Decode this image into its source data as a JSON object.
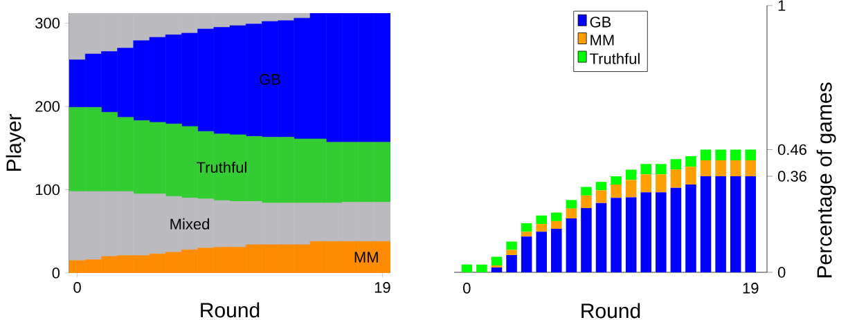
{
  "chart_data": [
    {
      "type": "bar",
      "stacked": true,
      "xlabel": "Round",
      "ylabel": "Player",
      "categories": [
        "0",
        null,
        null,
        null,
        null,
        null,
        null,
        null,
        null,
        null,
        null,
        null,
        null,
        null,
        null,
        null,
        null,
        null,
        null,
        "19"
      ],
      "series": [
        {
          "name": "MM",
          "color": "#ff8c00",
          "values": [
            15,
            16,
            20,
            21,
            21,
            23,
            25,
            28,
            30,
            31,
            31,
            34,
            34,
            34,
            34,
            38,
            38,
            38,
            38,
            38
          ]
        },
        {
          "name": "Mixed",
          "color": "#bbbbbf",
          "values": [
            83,
            82,
            78,
            77,
            74,
            72,
            67,
            62,
            59,
            56,
            55,
            52,
            50,
            50,
            50,
            46,
            46,
            47,
            47,
            47
          ]
        },
        {
          "name": "Truthful",
          "color": "#33cc33",
          "values": [
            101,
            101,
            95,
            89,
            88,
            86,
            87,
            86,
            81,
            80,
            80,
            78,
            79,
            79,
            77,
            77,
            73,
            72,
            72,
            72
          ]
        },
        {
          "name": "GB",
          "color": "#0000ff",
          "values": [
            57,
            64,
            73,
            83,
            96,
            102,
            107,
            112,
            123,
            128,
            131,
            135,
            139,
            140,
            145,
            151,
            155,
            155,
            155,
            155
          ]
        },
        {
          "color": "#bbbbbf",
          "values": [
            56,
            49,
            46,
            42,
            33,
            29,
            26,
            24,
            19,
            17,
            15,
            13,
            10,
            9,
            6,
            0,
            0,
            0,
            0,
            0
          ]
        }
      ],
      "ylim": [
        0,
        312
      ],
      "yticks": [
        0,
        100,
        200,
        300
      ]
    },
    {
      "type": "bar",
      "stacked": true,
      "xlabel": "Round",
      "ylabel": "Percentage of games",
      "categories": [
        "0",
        null,
        null,
        null,
        null,
        null,
        null,
        null,
        null,
        null,
        null,
        null,
        null,
        null,
        null,
        null,
        null,
        null,
        null,
        "19"
      ],
      "series": [
        {
          "name": "GB",
          "color": "#0000ff",
          "values": [
            0,
            0,
            0.018,
            0.065,
            0.134,
            0.152,
            0.163,
            0.202,
            0.241,
            0.26,
            0.279,
            0.281,
            0.3,
            0.3,
            0.317,
            0.329,
            0.36,
            0.36,
            0.36,
            0.36
          ]
        },
        {
          "name": "MM",
          "color": "#ffa000",
          "values": [
            0,
            0,
            0.008,
            0.019,
            0.018,
            0.029,
            0.029,
            0.037,
            0.047,
            0.047,
            0.05,
            0.065,
            0.067,
            0.067,
            0.068,
            0.067,
            0.06,
            0.06,
            0.06,
            0.06
          ]
        },
        {
          "name": "Truthful",
          "color": "#00ff00",
          "values": [
            0.029,
            0.029,
            0.032,
            0.031,
            0.032,
            0.032,
            0.032,
            0.032,
            0.032,
            0.032,
            0.031,
            0.039,
            0.039,
            0.039,
            0.039,
            0.039,
            0.04,
            0.04,
            0.04,
            0.04
          ]
        }
      ],
      "ylim": [
        0,
        1
      ],
      "yticks": [
        0,
        0.36,
        0.46,
        1
      ],
      "legend": "top"
    }
  ]
}
